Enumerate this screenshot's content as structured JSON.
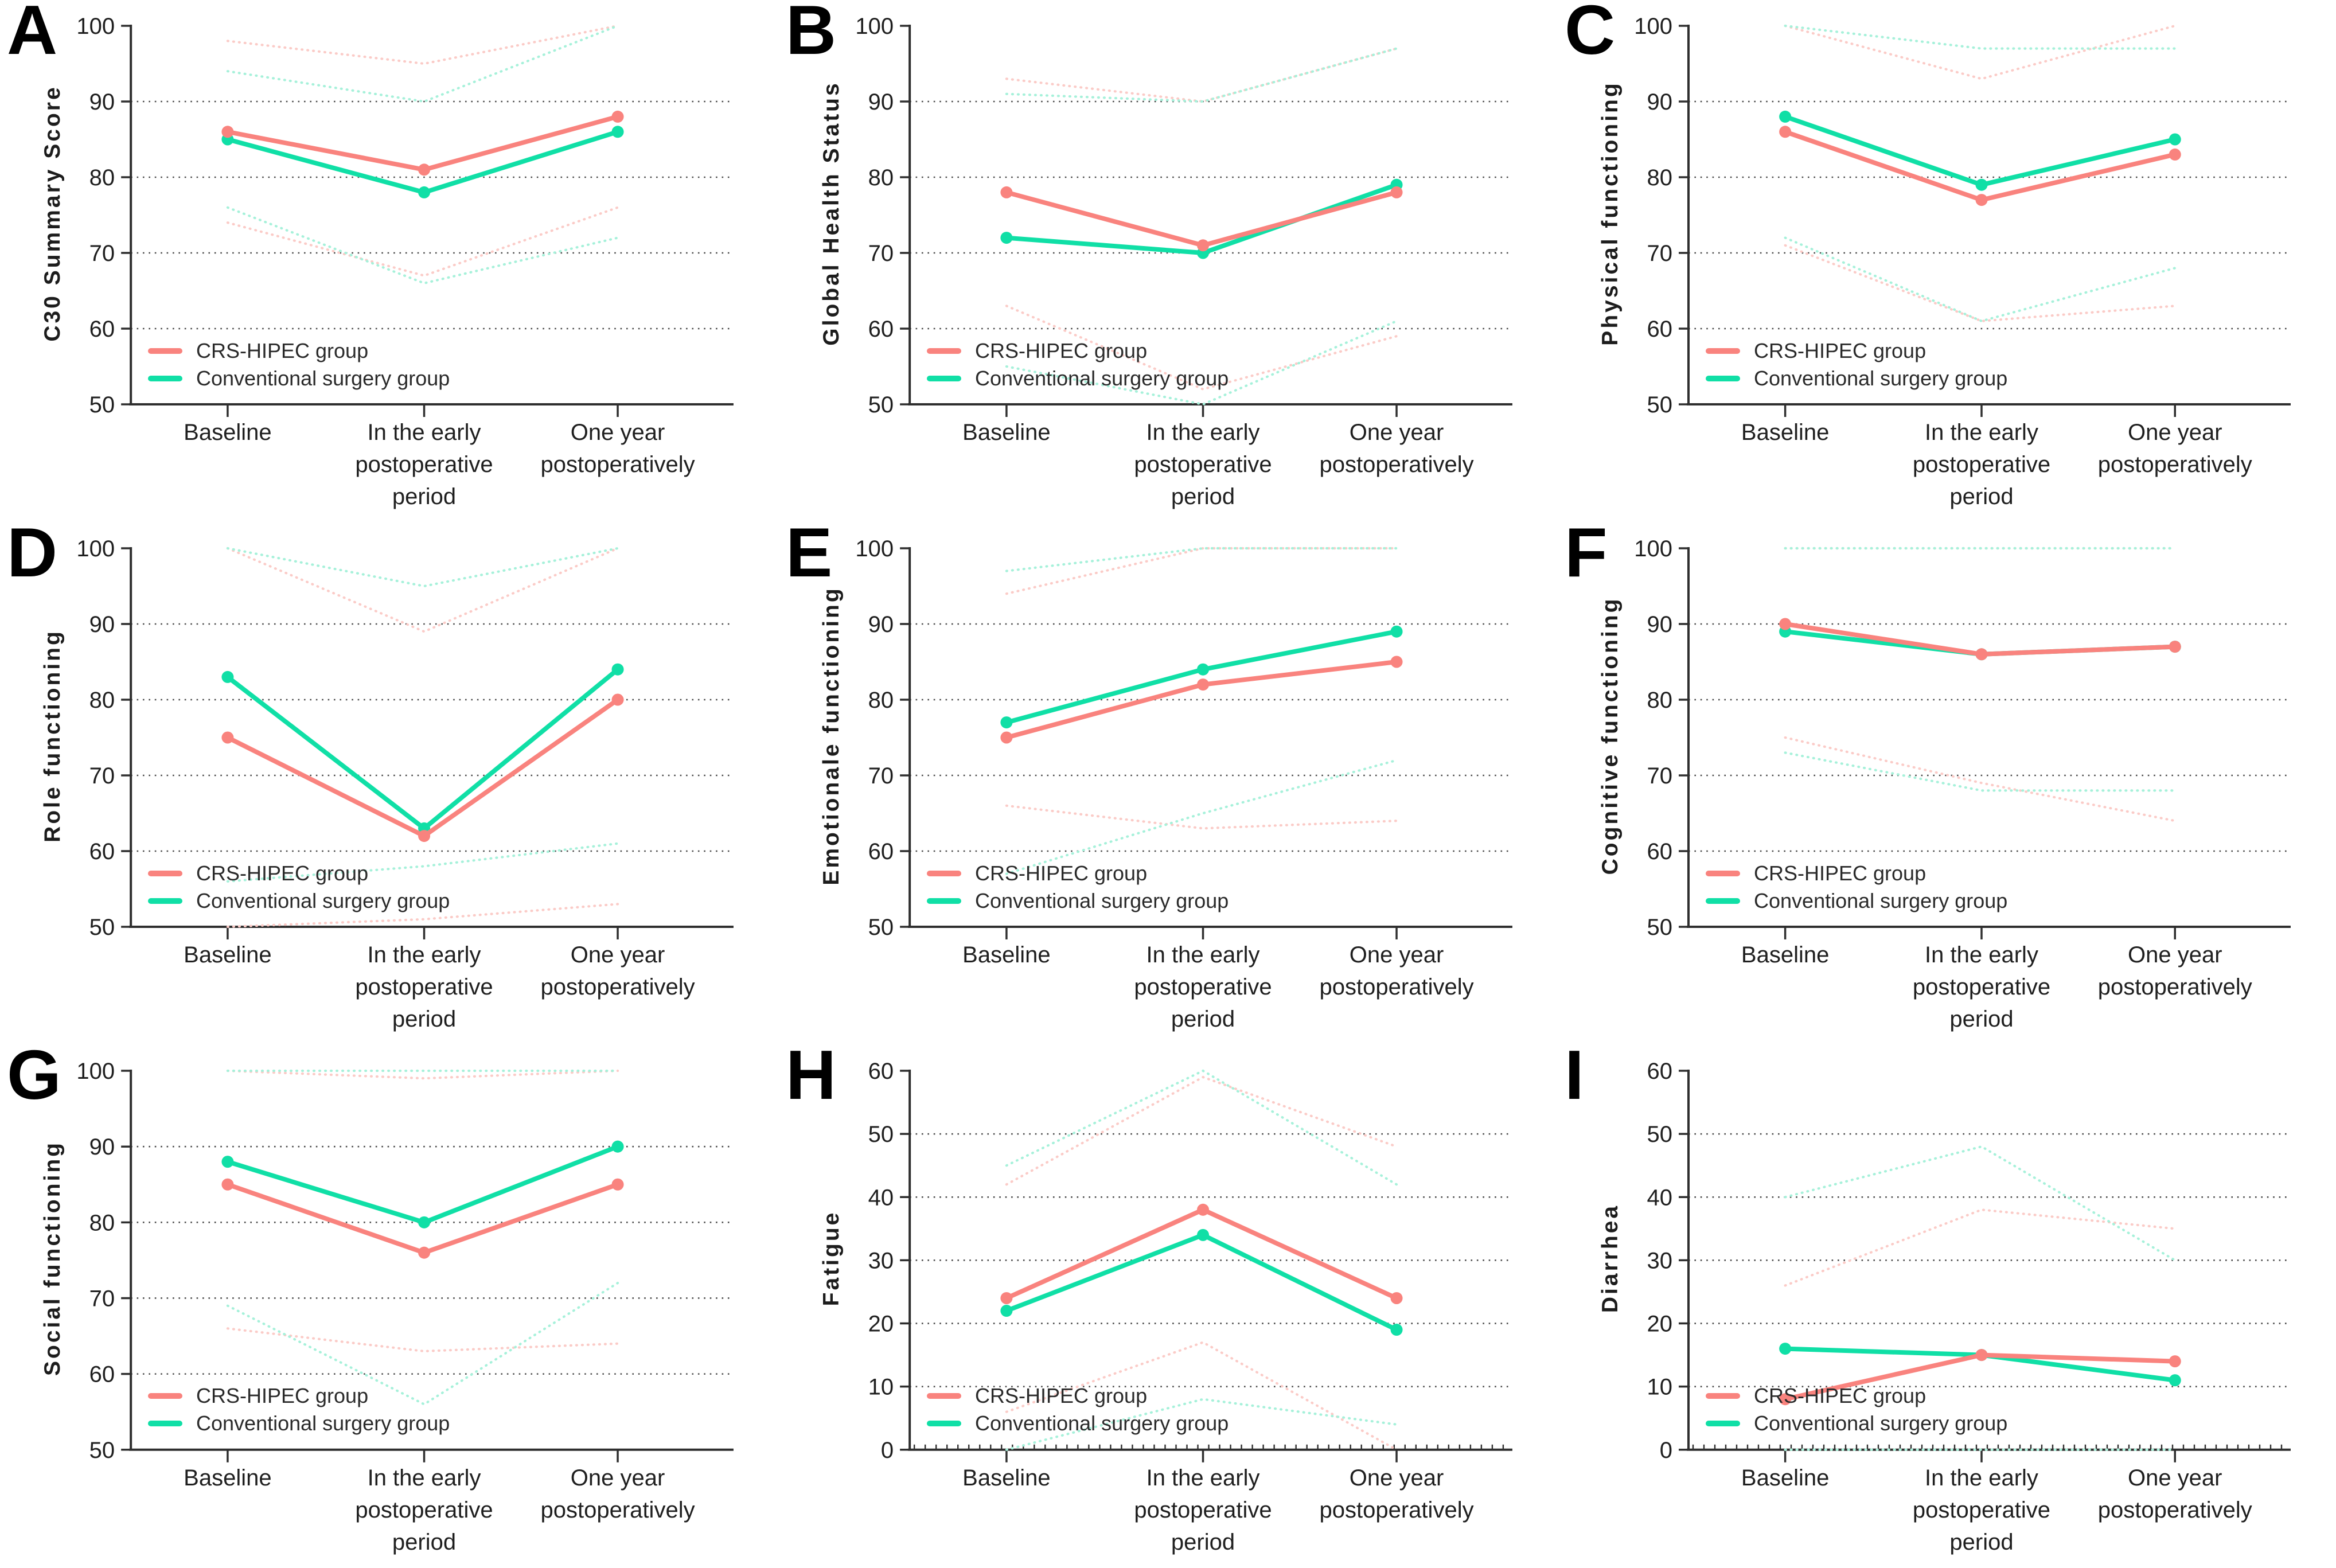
{
  "figure": {
    "description": "Nine-panel quality-of-life line chart figure comparing CRS-HIPEC group vs Conventional surgery group at three time points, with dotted confidence-interval lines",
    "legend": {
      "hipec_label": "CRS-HIPEC group",
      "conventional_label": "Conventional surgery group"
    },
    "colors": {
      "hipec": "#F9837E",
      "conventional": "#10DFA6",
      "hipec_ci": "#FBCBC7",
      "conventional_ci": "#A6F1DA",
      "grid": "#4a4a4a",
      "axis": "#2e2e2e",
      "text": "#1f1f1f"
    },
    "x_categories_wrapped": [
      [
        "Baseline"
      ],
      [
        "In the early",
        "postoperative",
        "period"
      ],
      [
        "One year",
        "postoperatively"
      ]
    ]
  },
  "chart_data": [
    {
      "panel": "A",
      "type": "line",
      "ylabel": "C30 Summary Score",
      "categories": [
        "Baseline",
        "In the early postoperative period",
        "One year postoperatively"
      ],
      "ylim": [
        50,
        100
      ],
      "yticks": [
        50,
        60,
        70,
        80,
        90,
        100
      ],
      "grid": "dotted horizontal",
      "legend_position": "inside bottom-left",
      "x_minor_ticks": false,
      "series": [
        {
          "name": "CRS-HIPEC group",
          "key": "hipec",
          "values": [
            86,
            81,
            88
          ],
          "upper_ci": [
            98,
            95,
            100
          ],
          "lower_ci": [
            74,
            67,
            76
          ]
        },
        {
          "name": "Conventional surgery group",
          "key": "conventional",
          "values": [
            85,
            78,
            86
          ],
          "upper_ci": [
            94,
            90,
            100
          ],
          "lower_ci": [
            76,
            66,
            72
          ]
        }
      ]
    },
    {
      "panel": "B",
      "type": "line",
      "ylabel": "Global Health Status",
      "categories": [
        "Baseline",
        "In the early postoperative period",
        "One year postoperatively"
      ],
      "ylim": [
        50,
        100
      ],
      "yticks": [
        50,
        60,
        70,
        80,
        90,
        100
      ],
      "grid": "dotted horizontal",
      "legend_position": "inside bottom-left",
      "x_minor_ticks": false,
      "series": [
        {
          "name": "CRS-HIPEC group",
          "key": "hipec",
          "values": [
            78,
            71,
            78
          ],
          "upper_ci": [
            93,
            90,
            97
          ],
          "lower_ci": [
            63,
            52,
            59
          ]
        },
        {
          "name": "Conventional surgery group",
          "key": "conventional",
          "values": [
            72,
            70,
            79
          ],
          "upper_ci": [
            91,
            90,
            97
          ],
          "lower_ci": [
            55,
            50,
            61
          ]
        }
      ]
    },
    {
      "panel": "C",
      "type": "line",
      "ylabel": "Physical functioning",
      "categories": [
        "Baseline",
        "In the early postoperative period",
        "One year postoperatively"
      ],
      "ylim": [
        50,
        100
      ],
      "yticks": [
        50,
        60,
        70,
        80,
        90,
        100
      ],
      "grid": "dotted horizontal",
      "legend_position": "inside bottom-left",
      "x_minor_ticks": false,
      "series": [
        {
          "name": "CRS-HIPEC group",
          "key": "hipec",
          "values": [
            86,
            77,
            83
          ],
          "upper_ci": [
            100,
            93,
            100
          ],
          "lower_ci": [
            71,
            61,
            63
          ]
        },
        {
          "name": "Conventional surgery group",
          "key": "conventional",
          "values": [
            88,
            79,
            85
          ],
          "upper_ci": [
            100,
            97,
            97
          ],
          "lower_ci": [
            72,
            61,
            68
          ]
        }
      ]
    },
    {
      "panel": "D",
      "type": "line",
      "ylabel": "Role functioning",
      "categories": [
        "Baseline",
        "In the early postoperative period",
        "One year postoperatively"
      ],
      "ylim": [
        50,
        100
      ],
      "yticks": [
        50,
        60,
        70,
        80,
        90,
        100
      ],
      "grid": "dotted horizontal",
      "legend_position": "inside bottom-left",
      "x_minor_ticks": false,
      "series": [
        {
          "name": "CRS-HIPEC group",
          "key": "hipec",
          "values": [
            75,
            62,
            80
          ],
          "upper_ci": [
            100,
            89,
            100
          ],
          "lower_ci": [
            50,
            51,
            53
          ]
        },
        {
          "name": "Conventional surgery group",
          "key": "conventional",
          "values": [
            83,
            63,
            84
          ],
          "upper_ci": [
            100,
            95,
            100
          ],
          "lower_ci": [
            56,
            58,
            61
          ]
        }
      ]
    },
    {
      "panel": "E",
      "type": "line",
      "ylabel": "Emotionale functioning",
      "categories": [
        "Baseline",
        "In the early postoperative period",
        "One year postoperatively"
      ],
      "ylim": [
        50,
        100
      ],
      "yticks": [
        50,
        60,
        70,
        80,
        90,
        100
      ],
      "grid": "dotted horizontal",
      "legend_position": "inside bottom-left",
      "x_minor_ticks": false,
      "series": [
        {
          "name": "CRS-HIPEC group",
          "key": "hipec",
          "values": [
            75,
            82,
            85
          ],
          "upper_ci": [
            94,
            100,
            100
          ],
          "lower_ci": [
            66,
            63,
            64
          ]
        },
        {
          "name": "Conventional surgery group",
          "key": "conventional",
          "values": [
            77,
            84,
            89
          ],
          "upper_ci": [
            97,
            100,
            100
          ],
          "lower_ci": [
            57,
            65,
            72
          ]
        }
      ]
    },
    {
      "panel": "F",
      "type": "line",
      "ylabel": "Cognitive functioning",
      "categories": [
        "Baseline",
        "In the early postoperative period",
        "One year postoperatively"
      ],
      "ylim": [
        50,
        100
      ],
      "yticks": [
        50,
        60,
        70,
        80,
        90,
        100
      ],
      "grid": "dotted horizontal",
      "legend_position": "inside bottom-left",
      "x_minor_ticks": false,
      "series": [
        {
          "name": "CRS-HIPEC group",
          "key": "hipec",
          "values": [
            90,
            86,
            87
          ],
          "upper_ci": [
            100,
            100,
            100
          ],
          "lower_ci": [
            75,
            69,
            64
          ]
        },
        {
          "name": "Conventional surgery group",
          "key": "conventional",
          "values": [
            89,
            86,
            87
          ],
          "upper_ci": [
            100,
            100,
            100
          ],
          "lower_ci": [
            73,
            68,
            68
          ]
        }
      ]
    },
    {
      "panel": "G",
      "type": "line",
      "ylabel": "Social functioning",
      "categories": [
        "Baseline",
        "In the early postoperative period",
        "One year postoperatively"
      ],
      "ylim": [
        50,
        100
      ],
      "yticks": [
        50,
        60,
        70,
        80,
        90,
        100
      ],
      "grid": "dotted horizontal",
      "legend_position": "inside bottom-left",
      "x_minor_ticks": false,
      "series": [
        {
          "name": "CRS-HIPEC group",
          "key": "hipec",
          "values": [
            85,
            76,
            85
          ],
          "upper_ci": [
            100,
            99,
            100
          ],
          "lower_ci": [
            66,
            63,
            64
          ]
        },
        {
          "name": "Conventional surgery group",
          "key": "conventional",
          "values": [
            88,
            80,
            90
          ],
          "upper_ci": [
            100,
            100,
            100
          ],
          "lower_ci": [
            69,
            56,
            72
          ]
        }
      ]
    },
    {
      "panel": "H",
      "type": "line",
      "ylabel": "Fatigue",
      "categories": [
        "Baseline",
        "In the early postoperative period",
        "One year postoperatively"
      ],
      "ylim": [
        0,
        60
      ],
      "yticks": [
        0,
        10,
        20,
        30,
        40,
        50,
        60
      ],
      "grid": "dotted horizontal",
      "legend_position": "inside bottom-left",
      "x_minor_ticks": true,
      "series": [
        {
          "name": "CRS-HIPEC group",
          "key": "hipec",
          "values": [
            24,
            38,
            24
          ],
          "upper_ci": [
            42,
            59,
            48
          ],
          "lower_ci": [
            6,
            17,
            0
          ]
        },
        {
          "name": "Conventional surgery group",
          "key": "conventional",
          "values": [
            22,
            34,
            19
          ],
          "upper_ci": [
            45,
            60,
            42
          ],
          "lower_ci": [
            0,
            8,
            4
          ]
        }
      ]
    },
    {
      "panel": "I",
      "type": "line",
      "ylabel": "Diarrhea",
      "categories": [
        "Baseline",
        "In the early postoperative period",
        "One year postoperatively"
      ],
      "ylim": [
        0,
        60
      ],
      "yticks": [
        0,
        10,
        20,
        30,
        40,
        50,
        60
      ],
      "grid": "dotted horizontal",
      "legend_position": "inside bottom-left",
      "x_minor_ticks": true,
      "series": [
        {
          "name": "CRS-HIPEC group",
          "key": "hipec",
          "values": [
            8,
            15,
            14
          ],
          "upper_ci": [
            26,
            38,
            35
          ],
          "lower_ci": [
            0,
            0,
            0
          ]
        },
        {
          "name": "Conventional surgery group",
          "key": "conventional",
          "values": [
            16,
            15,
            11
          ],
          "upper_ci": [
            40,
            48,
            30
          ],
          "lower_ci": [
            0,
            0,
            0
          ]
        }
      ]
    }
  ]
}
